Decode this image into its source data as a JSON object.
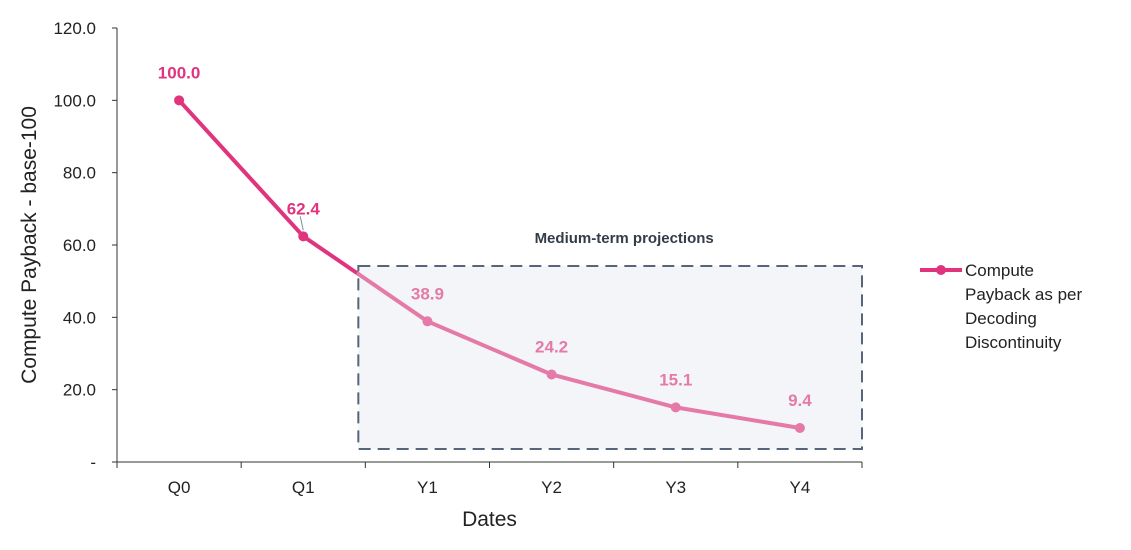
{
  "chart_data": {
    "type": "line",
    "categories": [
      "Q0",
      "Q1",
      "Y1",
      "Y2",
      "Y3",
      "Y4"
    ],
    "series": [
      {
        "name": "Compute Payback as per Decoding Discontinuity",
        "values": [
          100.0,
          62.4,
          38.9,
          24.2,
          15.1,
          9.4
        ],
        "data_labels": [
          "100.0",
          "62.4",
          "38.9",
          "24.2",
          "15.1",
          "9.4"
        ]
      }
    ],
    "legend_lines": [
      "Compute",
      "Payback as per",
      "Decoding",
      "Discontinuity"
    ],
    "xlabel": "Dates",
    "ylabel": "Compute Payback - base-100",
    "ylim": [
      0,
      120
    ],
    "yticks": [
      0,
      20,
      40,
      60,
      80,
      100,
      120
    ],
    "ytick_labels": [
      "-",
      "20.0",
      "40.0",
      "60.0",
      "80.0",
      "100.0",
      "120.0"
    ],
    "grid": false,
    "legend_position": "right",
    "annotation": {
      "text": "Medium-term projections",
      "x_range": [
        "Y1",
        "Y4"
      ]
    },
    "colors": {
      "historical": "#e0357e",
      "projection": "#e57aa8",
      "projection_box_fill": "#f3f5f8",
      "projection_box_border": "#56657a",
      "axis": "#333333"
    }
  }
}
